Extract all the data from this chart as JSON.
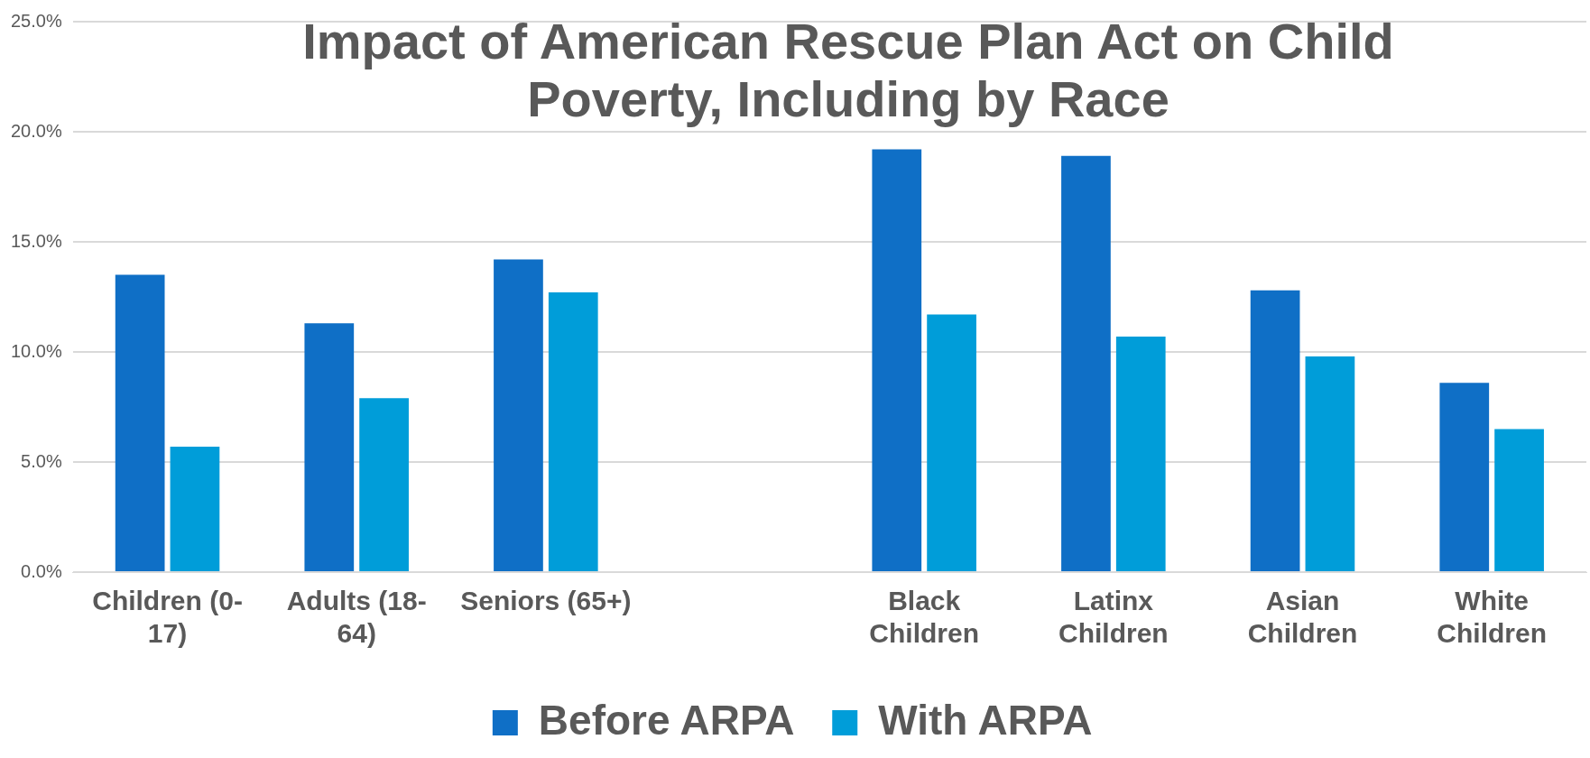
{
  "chart_data": {
    "type": "bar",
    "title": "Impact of American Rescue Plan Act on Child Poverty, Including by Race",
    "categories": [
      "Children (0-17)",
      "Adults (18-64)",
      "Seniors (65+)",
      null,
      "Black Children",
      "Latinx Children",
      "Asian Children",
      "White Children"
    ],
    "series": [
      {
        "name": "Before ARPA",
        "color": "#0f6fc6",
        "values": [
          13.5,
          11.3,
          14.2,
          null,
          19.2,
          18.9,
          12.8,
          8.6
        ]
      },
      {
        "name": "With ARPA",
        "color": "#009dd9",
        "values": [
          5.7,
          7.9,
          12.7,
          null,
          11.7,
          10.7,
          9.8,
          6.5
        ]
      }
    ],
    "ylim": [
      0,
      25
    ],
    "yticks": [
      {
        "value": 0,
        "label": "0.0%"
      },
      {
        "value": 5,
        "label": "5.0%"
      },
      {
        "value": 10,
        "label": "10.0%"
      },
      {
        "value": 15,
        "label": "15.0%"
      },
      {
        "value": 20,
        "label": "20.0%"
      },
      {
        "value": 25,
        "label": "25.0%"
      }
    ],
    "grid": "y",
    "legend": "bottom"
  }
}
